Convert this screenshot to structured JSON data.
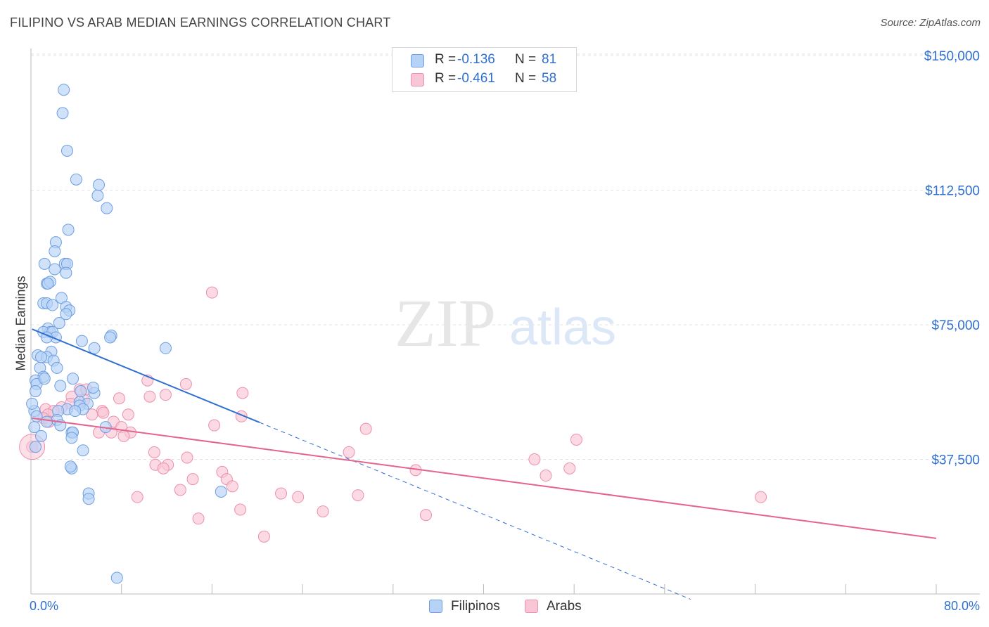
{
  "header": {
    "title": "FILIPINO VS ARAB MEDIAN EARNINGS CORRELATION CHART",
    "source": "Source: ZipAtlas.com"
  },
  "watermark": {
    "zip": "ZIP",
    "atlas": "atlas"
  },
  "legend": {
    "r_label": "R =",
    "n_label": "N =",
    "filipinos": {
      "r": "-0.136",
      "n": "81"
    },
    "arabs": {
      "r": "-0.461",
      "n": "58"
    }
  },
  "bottom_legend": {
    "filipinos": "Filipinos",
    "arabs": "Arabs"
  },
  "colors": {
    "filipinos_fill": "#b7d2f7",
    "filipinos_stroke": "#6d9ee0",
    "filipinos_line": "#2f6fd1",
    "arabs_fill": "#f9c6d6",
    "arabs_stroke": "#ec8fae",
    "arabs_line": "#e4648f",
    "tick_text": "#2f6fd1"
  },
  "chart_data": {
    "type": "scatter",
    "title": "FILIPINO VS ARAB MEDIAN EARNINGS CORRELATION CHART",
    "xlabel": "",
    "ylabel": "Median Earnings",
    "xlim": [
      0,
      80
    ],
    "ylim": [
      0,
      152000
    ],
    "x_tick_labels": [
      "0.0%",
      "80.0%"
    ],
    "y_ticks": [
      37500,
      75000,
      112500,
      150000
    ],
    "y_tick_labels": [
      "$37,500",
      "$75,000",
      "$112,500",
      "$150,000"
    ],
    "grid": true,
    "legend_position": "top-center",
    "series": [
      {
        "name": "Filipinos",
        "r": -0.136,
        "n": 81,
        "trend": {
          "x0": 0.1,
          "y0": 73800,
          "x1": 20.2,
          "y1": 47800,
          "dashed_to_x": 58.3
        },
        "points": [
          [
            2.9,
            140500
          ],
          [
            2.8,
            134000
          ],
          [
            3.2,
            123500
          ],
          [
            4.0,
            115500
          ],
          [
            6.0,
            114000
          ],
          [
            5.9,
            111000
          ],
          [
            6.7,
            107500
          ],
          [
            3.3,
            101500
          ],
          [
            2.2,
            98000
          ],
          [
            2.1,
            95500
          ],
          [
            1.2,
            92000
          ],
          [
            3.0,
            92000
          ],
          [
            3.2,
            92000
          ],
          [
            2.1,
            90500
          ],
          [
            3.1,
            89500
          ],
          [
            1.4,
            86500
          ],
          [
            1.7,
            87000
          ],
          [
            1.5,
            86500
          ],
          [
            2.7,
            82500
          ],
          [
            1.1,
            81000
          ],
          [
            1.4,
            81000
          ],
          [
            1.9,
            80500
          ],
          [
            3.1,
            80000
          ],
          [
            3.4,
            79000
          ],
          [
            3.1,
            78000
          ],
          [
            2.5,
            75500
          ],
          [
            1.5,
            74000
          ],
          [
            1.7,
            73000
          ],
          [
            1.1,
            73000
          ],
          [
            1.9,
            73000
          ],
          [
            7.1,
            72000
          ],
          [
            7.0,
            71500
          ],
          [
            2.2,
            71500
          ],
          [
            1.4,
            71500
          ],
          [
            4.5,
            70500
          ],
          [
            11.9,
            68500
          ],
          [
            5.6,
            68500
          ],
          [
            1.8,
            67500
          ],
          [
            0.6,
            66500
          ],
          [
            1.4,
            66000
          ],
          [
            0.9,
            66000
          ],
          [
            2.0,
            65000
          ],
          [
            2.3,
            63000
          ],
          [
            0.8,
            63000
          ],
          [
            1.1,
            60500
          ],
          [
            0.4,
            59500
          ],
          [
            0.5,
            58500
          ],
          [
            3.7,
            60000
          ],
          [
            2.6,
            58000
          ],
          [
            0.4,
            56500
          ],
          [
            4.4,
            56500
          ],
          [
            5.6,
            56000
          ],
          [
            4.3,
            53500
          ],
          [
            5.0,
            53000
          ],
          [
            4.3,
            52500
          ],
          [
            4.6,
            51500
          ],
          [
            3.2,
            51500
          ],
          [
            3.9,
            51000
          ],
          [
            2.4,
            51000
          ],
          [
            0.3,
            51000
          ],
          [
            0.5,
            49500
          ],
          [
            2.3,
            48500
          ],
          [
            1.4,
            48000
          ],
          [
            0.3,
            46500
          ],
          [
            6.6,
            46500
          ],
          [
            2.6,
            47000
          ],
          [
            3.6,
            45000
          ],
          [
            3.7,
            45000
          ],
          [
            3.6,
            43500
          ],
          [
            0.4,
            41000
          ],
          [
            4.6,
            40000
          ],
          [
            3.6,
            35000
          ],
          [
            3.5,
            35500
          ],
          [
            5.1,
            28000
          ],
          [
            5.1,
            26500
          ],
          [
            16.8,
            28500
          ],
          [
            7.6,
            4500
          ],
          [
            0.1,
            53000
          ],
          [
            1.2,
            60000
          ],
          [
            0.9,
            44000
          ],
          [
            5.5,
            57500
          ]
        ]
      },
      {
        "name": "Arabs",
        "r": -0.461,
        "n": 58,
        "trend": {
          "x0": 0.1,
          "y0": 49000,
          "x1": 80.0,
          "y1": 15500
        },
        "points": [
          [
            16.0,
            84000
          ],
          [
            10.3,
            59500
          ],
          [
            13.7,
            58500
          ],
          [
            4.3,
            57000
          ],
          [
            4.9,
            57000
          ],
          [
            18.7,
            56000
          ],
          [
            11.9,
            55500
          ],
          [
            10.5,
            55000
          ],
          [
            7.8,
            54500
          ],
          [
            3.6,
            55000
          ],
          [
            4.7,
            54000
          ],
          [
            3.5,
            53000
          ],
          [
            2.7,
            52000
          ],
          [
            1.3,
            51500
          ],
          [
            2.0,
            51000
          ],
          [
            6.3,
            51000
          ],
          [
            6.4,
            50500
          ],
          [
            8.6,
            50000
          ],
          [
            1.5,
            50000
          ],
          [
            1.1,
            49000
          ],
          [
            5.4,
            50000
          ],
          [
            18.6,
            49500
          ],
          [
            7.3,
            48000
          ],
          [
            1.6,
            48000
          ],
          [
            16.2,
            47000
          ],
          [
            8.0,
            46500
          ],
          [
            8.8,
            45000
          ],
          [
            6.0,
            45000
          ],
          [
            7.1,
            45000
          ],
          [
            8.2,
            44000
          ],
          [
            29.6,
            46000
          ],
          [
            48.2,
            43000
          ],
          [
            10.9,
            39500
          ],
          [
            28.1,
            39500
          ],
          [
            13.8,
            38000
          ],
          [
            44.5,
            37500
          ],
          [
            11.0,
            36000
          ],
          [
            12.1,
            36000
          ],
          [
            47.6,
            35000
          ],
          [
            11.7,
            35000
          ],
          [
            16.9,
            34000
          ],
          [
            34.0,
            34500
          ],
          [
            45.5,
            33000
          ],
          [
            17.3,
            32000
          ],
          [
            14.3,
            32000
          ],
          [
            17.8,
            30000
          ],
          [
            13.2,
            29000
          ],
          [
            22.1,
            28000
          ],
          [
            28.9,
            27500
          ],
          [
            23.6,
            27000
          ],
          [
            9.4,
            27000
          ],
          [
            64.5,
            27000
          ],
          [
            18.5,
            23500
          ],
          [
            25.8,
            23000
          ],
          [
            34.9,
            22000
          ],
          [
            14.8,
            21000
          ],
          [
            20.6,
            16000
          ],
          [
            0.1,
            41000
          ]
        ]
      }
    ]
  }
}
